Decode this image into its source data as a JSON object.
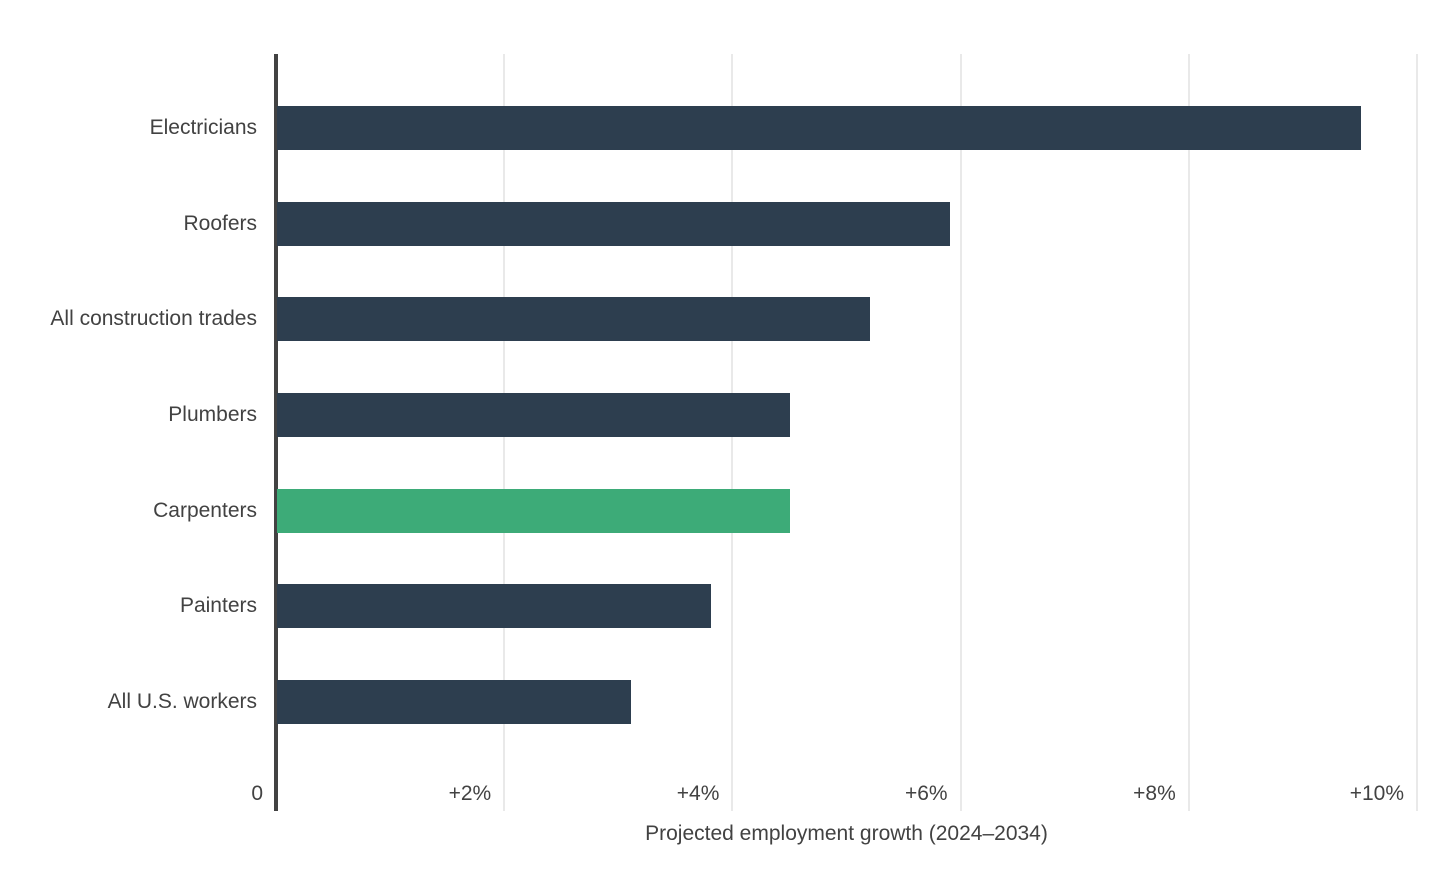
{
  "chart_data": {
    "type": "bar",
    "orientation": "horizontal",
    "title": "",
    "xlabel": "Projected employment growth (2024–2034)",
    "ylabel": "",
    "categories": [
      "Electricians",
      "Roofers",
      "All construction trades",
      "Plumbers",
      "Carpenters",
      "Painters",
      "All U.S. workers"
    ],
    "values": [
      9.5,
      5.9,
      5.2,
      4.5,
      4.5,
      3.8,
      3.1
    ],
    "highlighted_category": "Carpenters",
    "xlim": [
      0,
      10
    ],
    "grid": true,
    "legend": "none",
    "x_ticks": [
      {
        "value": 0,
        "label": "0"
      },
      {
        "value": 2,
        "label": "+2%"
      },
      {
        "value": 4,
        "label": "+4%"
      },
      {
        "value": 6,
        "label": "+6%"
      },
      {
        "value": 8,
        "label": "+8%"
      },
      {
        "value": 10,
        "label": "+10%"
      }
    ],
    "colors": {
      "bar": "#2d3e4f",
      "highlight": "#3dab78",
      "gridline": "#e9e9e9",
      "axis_line": "#424242",
      "text": "#424242",
      "background": "#ffffff"
    }
  }
}
